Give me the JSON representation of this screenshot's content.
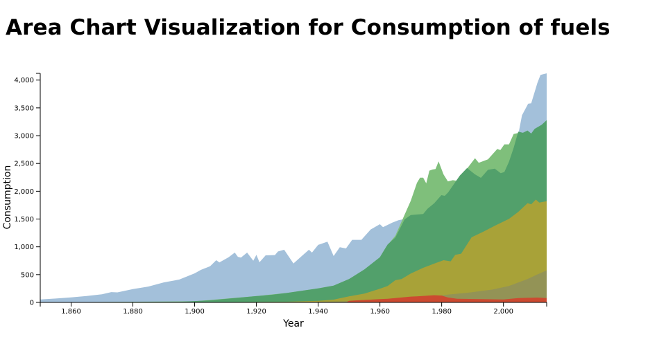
{
  "title": "Area Chart Visualization for Consumption of fuels",
  "chart_data": {
    "type": "area",
    "title": "Area Chart Visualization for Consumption of fuels",
    "xlabel": "Year",
    "ylabel": "Consumption",
    "xlim": [
      1850,
      2014
    ],
    "ylim": [
      0,
      4121
    ],
    "x_ticks": [
      {
        "value": 1860,
        "label": "1,860"
      },
      {
        "value": 1880,
        "label": "1,880"
      },
      {
        "value": 1900,
        "label": "1,900"
      },
      {
        "value": 1920,
        "label": "1,920"
      },
      {
        "value": 1940,
        "label": "1,940"
      },
      {
        "value": 1960,
        "label": "1,960"
      },
      {
        "value": 1980,
        "label": "1,980"
      },
      {
        "value": 2000,
        "label": "2,000"
      }
    ],
    "y_ticks": [
      {
        "value": 0,
        "label": "0"
      },
      {
        "value": 500,
        "label": "500"
      },
      {
        "value": 1000,
        "label": "1,000"
      },
      {
        "value": 1500,
        "label": "1,500"
      },
      {
        "value": 2000,
        "label": "2,000"
      },
      {
        "value": 2500,
        "label": "2,500"
      },
      {
        "value": 3000,
        "label": "3,000"
      },
      {
        "value": 3500,
        "label": "3,500"
      },
      {
        "value": 4000,
        "label": "4,000"
      }
    ],
    "grid": false,
    "overlap": true,
    "series": [
      {
        "id": "series-1",
        "color": "#a3c0da",
        "points": [
          [
            1850,
            54
          ],
          [
            1855,
            70
          ],
          [
            1860,
            91
          ],
          [
            1865,
            115
          ],
          [
            1870,
            147
          ],
          [
            1873,
            185
          ],
          [
            1875,
            180
          ],
          [
            1880,
            240
          ],
          [
            1885,
            285
          ],
          [
            1890,
            360
          ],
          [
            1895,
            411
          ],
          [
            1900,
            523
          ],
          [
            1902,
            585
          ],
          [
            1905,
            650
          ],
          [
            1907,
            760
          ],
          [
            1908,
            720
          ],
          [
            1911,
            813
          ],
          [
            1913,
            897
          ],
          [
            1914,
            820
          ],
          [
            1915,
            805
          ],
          [
            1917,
            897
          ],
          [
            1919,
            751
          ],
          [
            1920,
            855
          ],
          [
            1921,
            722
          ],
          [
            1923,
            847
          ],
          [
            1926,
            851
          ],
          [
            1927,
            916
          ],
          [
            1929,
            947
          ],
          [
            1932,
            700
          ],
          [
            1934,
            801
          ],
          [
            1937,
            947
          ],
          [
            1938,
            897
          ],
          [
            1940,
            1034
          ],
          [
            1943,
            1092
          ],
          [
            1945,
            834
          ],
          [
            1947,
            993
          ],
          [
            1949,
            971
          ],
          [
            1951,
            1125
          ],
          [
            1954,
            1125
          ],
          [
            1957,
            1312
          ],
          [
            1960,
            1407
          ],
          [
            1961,
            1355
          ],
          [
            1964,
            1436
          ],
          [
            1966,
            1478
          ],
          [
            1968,
            1500
          ],
          [
            1975,
            1900
          ],
          [
            1985,
            2200
          ],
          [
            1995,
            2500
          ],
          [
            2003,
            2800
          ],
          [
            2005,
            3071
          ],
          [
            2006,
            3366
          ],
          [
            2008,
            3574
          ],
          [
            2009,
            3582
          ],
          [
            2011,
            3948
          ],
          [
            2012,
            4092
          ],
          [
            2014,
            4121
          ]
        ]
      },
      {
        "id": "series-2",
        "color": "#7fbf7b",
        "points": [
          [
            1850,
            0
          ],
          [
            1900,
            20
          ],
          [
            1919,
            108
          ],
          [
            1930,
            170
          ],
          [
            1940,
            253
          ],
          [
            1945,
            303
          ],
          [
            1950,
            420
          ],
          [
            1955,
            594
          ],
          [
            1960,
            813
          ],
          [
            1962,
            1000
          ],
          [
            1965,
            1200
          ],
          [
            1967,
            1453
          ],
          [
            1970,
            1829
          ],
          [
            1972,
            2150
          ],
          [
            1973,
            2245
          ],
          [
            1974,
            2245
          ],
          [
            1975,
            2141
          ],
          [
            1976,
            2370
          ],
          [
            1977,
            2391
          ],
          [
            1978,
            2400
          ],
          [
            1979,
            2536
          ],
          [
            1980.6,
            2303
          ],
          [
            1982,
            2178
          ],
          [
            1983.6,
            2199
          ],
          [
            1984.7,
            2190
          ],
          [
            1986,
            2283
          ],
          [
            1988.5,
            2428
          ],
          [
            1990.8,
            2594
          ],
          [
            1992,
            2511
          ],
          [
            1995,
            2573
          ],
          [
            1998,
            2760
          ],
          [
            1999,
            2740
          ],
          [
            2000.3,
            2843
          ],
          [
            2001.8,
            2843
          ],
          [
            2003.3,
            3030
          ],
          [
            2005,
            3050
          ],
          [
            2006.3,
            3030
          ],
          [
            2008,
            3070
          ],
          [
            2009,
            3018
          ],
          [
            2010,
            3100
          ],
          [
            2012.4,
            3176
          ],
          [
            2014,
            3259
          ]
        ]
      },
      {
        "id": "series-3",
        "color": "#52a06b",
        "points": [
          [
            1850,
            0
          ],
          [
            1895,
            10
          ],
          [
            1905,
            37
          ],
          [
            1919,
            108
          ],
          [
            1925,
            137
          ],
          [
            1930,
            170
          ],
          [
            1940,
            253
          ],
          [
            1945,
            303
          ],
          [
            1950,
            420
          ],
          [
            1955,
            594
          ],
          [
            1960,
            813
          ],
          [
            1962.5,
            1042
          ],
          [
            1965,
            1167
          ],
          [
            1968,
            1494
          ],
          [
            1970,
            1573
          ],
          [
            1974,
            1590
          ],
          [
            1975.4,
            1683
          ],
          [
            1977.6,
            1785
          ],
          [
            1979.9,
            1930
          ],
          [
            1981,
            1917
          ],
          [
            1982.1,
            1980
          ],
          [
            1985.9,
            2283
          ],
          [
            1988.2,
            2416
          ],
          [
            1990.8,
            2303
          ],
          [
            1992.7,
            2241
          ],
          [
            1995,
            2386
          ],
          [
            1997.2,
            2407
          ],
          [
            1999.1,
            2324
          ],
          [
            2000.3,
            2345
          ],
          [
            2001.8,
            2532
          ],
          [
            2003.3,
            2781
          ],
          [
            2004.8,
            3071
          ],
          [
            2006.3,
            3051
          ],
          [
            2007.8,
            3092
          ],
          [
            2009,
            3038
          ],
          [
            2010.1,
            3121
          ],
          [
            2012.4,
            3196
          ],
          [
            2014,
            3279
          ]
        ]
      },
      {
        "id": "series-4",
        "color": "#a8a238",
        "points": [
          [
            1850,
            0
          ],
          [
            1900,
            3
          ],
          [
            1930,
            12
          ],
          [
            1940,
            29
          ],
          [
            1945,
            50
          ],
          [
            1950,
            108
          ],
          [
            1955,
            158
          ],
          [
            1960,
            245
          ],
          [
            1962.5,
            295
          ],
          [
            1965,
            400
          ],
          [
            1967,
            420
          ],
          [
            1970,
            519
          ],
          [
            1974,
            623
          ],
          [
            1977.6,
            698
          ],
          [
            1980.6,
            760
          ],
          [
            1982.9,
            739
          ],
          [
            1984.4,
            855
          ],
          [
            1986.3,
            876
          ],
          [
            1989.7,
            1171
          ],
          [
            1993.5,
            1274
          ],
          [
            1997.2,
            1378
          ],
          [
            2001.8,
            1503
          ],
          [
            2004.8,
            1627
          ],
          [
            2007.8,
            1785
          ],
          [
            2009,
            1764
          ],
          [
            2010.5,
            1850
          ],
          [
            2011.6,
            1797
          ],
          [
            2014,
            1822
          ]
        ]
      },
      {
        "id": "series-5",
        "color": "#939356",
        "points": [
          [
            1850,
            0
          ],
          [
            1930,
            4
          ],
          [
            1950,
            20
          ],
          [
            1960,
            40
          ],
          [
            1970,
            70
          ],
          [
            1978,
            110
          ],
          [
            1981.5,
            137
          ],
          [
            1989,
            178
          ],
          [
            1996.5,
            232
          ],
          [
            2001.8,
            295
          ],
          [
            2004.8,
            357
          ],
          [
            2007.8,
            419
          ],
          [
            2010.9,
            502
          ],
          [
            2014,
            577
          ]
        ]
      },
      {
        "id": "series-6",
        "color": "#cc4a30",
        "points": [
          [
            1850,
            0
          ],
          [
            1949,
            0
          ],
          [
            1950,
            29
          ],
          [
            1960,
            60
          ],
          [
            1962.5,
            66
          ],
          [
            1970,
            105
          ],
          [
            1972,
            108
          ],
          [
            1977.6,
            129
          ],
          [
            1980,
            123
          ],
          [
            1982,
            89
          ],
          [
            1985,
            66
          ],
          [
            1993,
            58
          ],
          [
            2000,
            54
          ],
          [
            2004.8,
            79
          ],
          [
            2010.9,
            87
          ],
          [
            2014,
            79
          ]
        ]
      }
    ]
  }
}
